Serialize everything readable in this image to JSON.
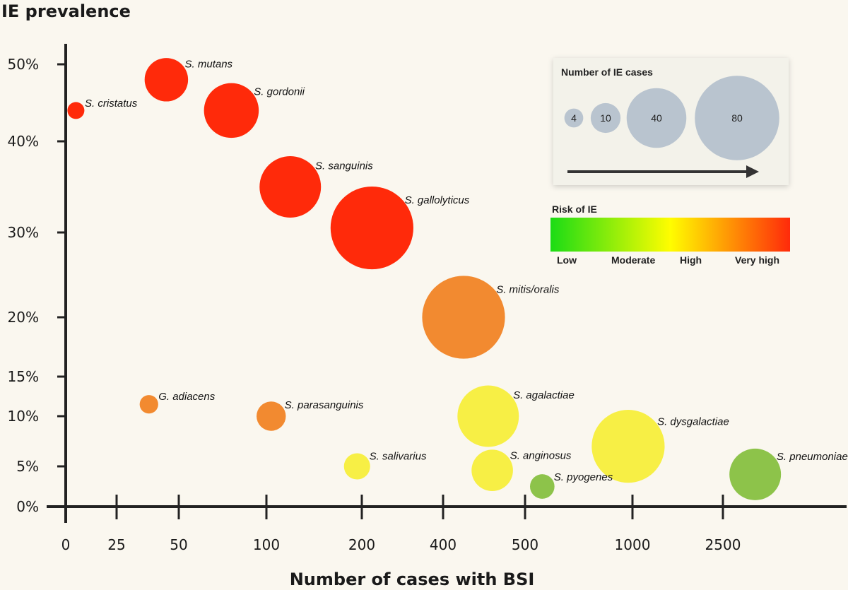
{
  "chart_data": {
    "type": "bubble",
    "ylabel": "IE prevalence",
    "xlabel": "Number of cases with BSI",
    "x_scale": "categorical",
    "x_ticks": [
      "0",
      "25",
      "50",
      "100",
      "200",
      "400",
      "500",
      "1000",
      "2500"
    ],
    "y_ticks": [
      "0%",
      "5%",
      "10%",
      "15%",
      "20%",
      "30%",
      "40%",
      "50%"
    ],
    "points": [
      {
        "label": "S. cristatus",
        "x": 5,
        "y": 44,
        "ie_cases": 2,
        "risk": "Very high",
        "color": "#ff2a0a"
      },
      {
        "label": "S. mutans",
        "x": 45,
        "y": 48,
        "ie_cases": 22,
        "risk": "Very high",
        "color": "#ff2a0a"
      },
      {
        "label": "S. gordonii",
        "x": 80,
        "y": 44,
        "ie_cases": 35,
        "risk": "Very high",
        "color": "#ff2a0a"
      },
      {
        "label": "S. sanguinis",
        "x": 125,
        "y": 35,
        "ie_cases": 44,
        "risk": "Very high",
        "color": "#ff2a0a"
      },
      {
        "label": "S. gallolyticus",
        "x": 225,
        "y": 30.5,
        "ie_cases": 80,
        "risk": "Very high",
        "color": "#ff2a0a"
      },
      {
        "label": "S. mitis/oralis",
        "x": 425,
        "y": 20,
        "ie_cases": 80,
        "risk": "High",
        "color": "#f28a30"
      },
      {
        "label": "G. adiacens",
        "x": 38,
        "y": 11.5,
        "ie_cases": 4,
        "risk": "High",
        "color": "#f28a30"
      },
      {
        "label": "S. parasanguinis",
        "x": 105,
        "y": 10,
        "ie_cases": 10,
        "risk": "High",
        "color": "#f28a30"
      },
      {
        "label": "S. agalactiae",
        "x": 455,
        "y": 10,
        "ie_cases": 44,
        "risk": "Moderate",
        "color": "#f7ef45"
      },
      {
        "label": "S. salivarius",
        "x": 195,
        "y": 5,
        "ie_cases": 8,
        "risk": "Moderate",
        "color": "#f7ef45"
      },
      {
        "label": "S. anginosus",
        "x": 460,
        "y": 4.5,
        "ie_cases": 20,
        "risk": "Moderate",
        "color": "#f7ef45"
      },
      {
        "label": "S. dysgalactiae",
        "x": 980,
        "y": 7,
        "ie_cases": 62,
        "risk": "Moderate",
        "color": "#f7ef45"
      },
      {
        "label": "S. pyogenes",
        "x": 580,
        "y": 2.5,
        "ie_cases": 7,
        "risk": "Low",
        "color": "#8dc34a"
      },
      {
        "label": "S. pneumoniae",
        "x": 3000,
        "y": 4,
        "ie_cases": 31,
        "risk": "Low",
        "color": "#8dc34a"
      }
    ],
    "size_legend": {
      "title": "Number of IE cases",
      "values": [
        "4",
        "10",
        "40",
        "80"
      ],
      "color": "#b9c4cf"
    },
    "color_legend": {
      "title": "Risk of IE",
      "labels": [
        "Low",
        "Moderate",
        "High",
        "Very high"
      ],
      "gradient": [
        "#1bdc15",
        "#fffd00",
        "#ff2a0a"
      ]
    }
  }
}
